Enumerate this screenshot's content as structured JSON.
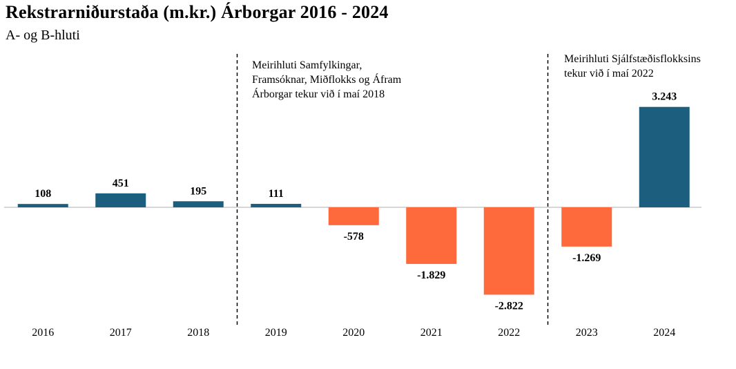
{
  "title": "Rekstrarniðurstaða (m.kr.) Árborgar 2016 - 2024",
  "subtitle": "A- og B-hluti",
  "annotations": [
    "Meirihluti Samfylkingar,\nFramsóknar, Miðflokks og Áfram\nÁrborgar tekur við í maí 2018",
    "Meirihluti Sjálfstæðisflokksins\ntekur við í maí 2022"
  ],
  "colors": {
    "positive": "#1b5e7e",
    "negative": "#ff6a3c",
    "axis": "#c8c8c8"
  },
  "chart_data": {
    "type": "bar",
    "categories": [
      "2016",
      "2017",
      "2018",
      "2019",
      "2020",
      "2021",
      "2022",
      "2023",
      "2024"
    ],
    "values": [
      108,
      451,
      195,
      111,
      -578,
      -1829,
      -2822,
      -1269,
      3243
    ],
    "value_labels": [
      "108",
      "451",
      "195",
      "111",
      "-578",
      "-1.829",
      "-2.822",
      "-1.269",
      "3.243"
    ],
    "title": "Rekstrarniðurstaða (m.kr.) Árborgar 2016 - 2024",
    "subtitle": "A- og B-hluti",
    "xlabel": "",
    "ylabel": "",
    "grid": false,
    "legend": "none",
    "dividers_after": [
      "2018",
      "2022"
    ]
  }
}
